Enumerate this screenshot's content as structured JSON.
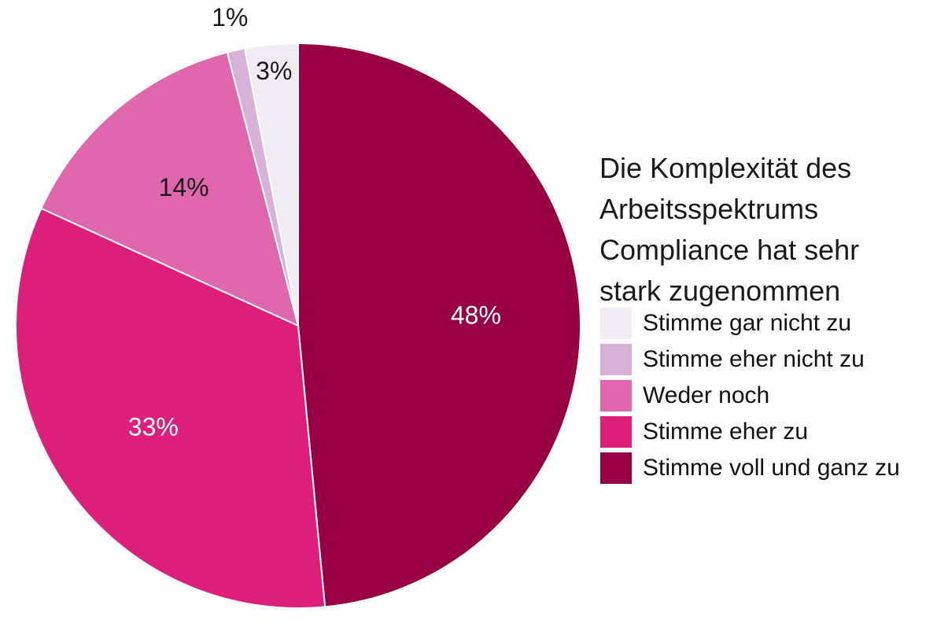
{
  "chart_data": {
    "type": "pie",
    "title_lines": [
      "Die Komplexität des",
      "Arbeitsspektrums",
      "Compliance hat sehr",
      "stark zugenommen"
    ],
    "slices": [
      {
        "label": "Stimme voll und ganz zu",
        "value": 48,
        "display": "48%",
        "color": "#990044",
        "label_color": "#ffffff"
      },
      {
        "label": "Stimme eher zu",
        "value": 33,
        "display": "33%",
        "color": "#dd1e7a",
        "label_color": "#ffffff"
      },
      {
        "label": "Weder noch",
        "value": 14,
        "display": "14%",
        "color": "#e066ae",
        "label_color": "#1a1a1a"
      },
      {
        "label": "Stimme eher nicht zu",
        "value": 1,
        "display": "1%",
        "color": "#d8b2d6",
        "label_color": "#1a1a1a"
      },
      {
        "label": "Stimme gar nicht zu",
        "value": 3,
        "display": "3%",
        "color": "#f0ecf3",
        "label_color": "#1a1a1a"
      }
    ],
    "legend": [
      {
        "label": "Stimme gar nicht zu",
        "color": "#f0ecf3"
      },
      {
        "label": "Stimme eher nicht zu",
        "color": "#d8b2d6"
      },
      {
        "label": "Weder noch",
        "color": "#e066ae"
      },
      {
        "label": "Stimme eher zu",
        "color": "#dd1e7a"
      },
      {
        "label": "Stimme voll und ganz zu",
        "color": "#990044"
      }
    ],
    "legend_placement": "right"
  }
}
